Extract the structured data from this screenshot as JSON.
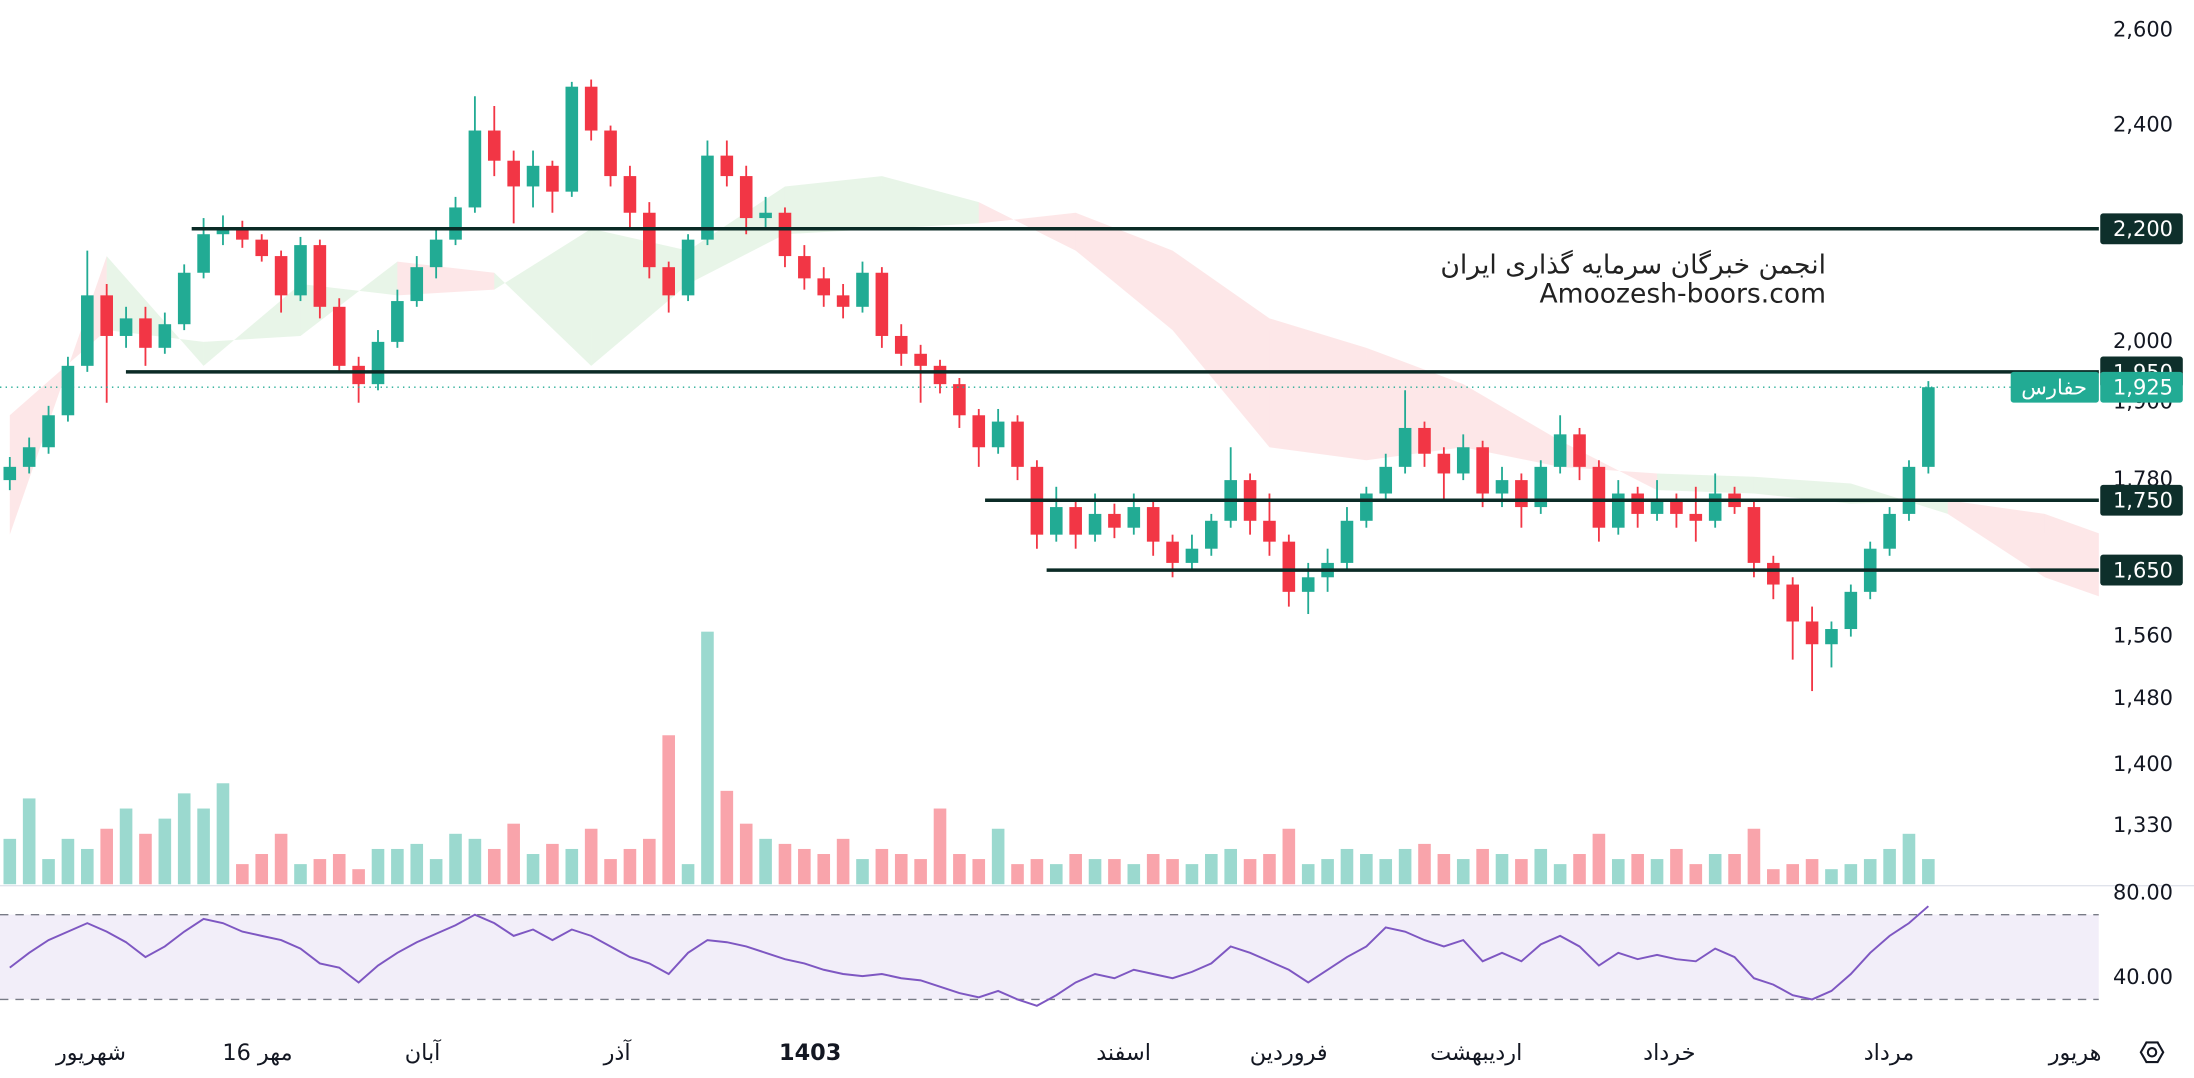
{
  "chart_data": {
    "type": "candlestick",
    "log_scale": true,
    "ylim": [
      1266,
      2668
    ],
    "yticks": [
      {
        "value": 2600,
        "label": "2,600"
      },
      {
        "value": 2400,
        "label": "2,400"
      },
      {
        "value": 2000,
        "label": "2,000"
      },
      {
        "value": 1900,
        "label": "1,900"
      },
      {
        "value": 1780,
        "label": "1,780"
      },
      {
        "value": 1560,
        "label": "1,560"
      },
      {
        "value": 1480,
        "label": "1,480"
      },
      {
        "value": 1400,
        "label": "1,400"
      },
      {
        "value": 1330,
        "label": "1,330"
      }
    ],
    "up_color": "#22ab94",
    "down_color": "#f23645",
    "open": [
      1780,
      1800,
      1830,
      1880,
      1960,
      2080,
      2010,
      2040,
      1990,
      2030,
      2120,
      2190,
      2200,
      2180,
      2150,
      2080,
      2170,
      2060,
      1960,
      1930,
      2000,
      2070,
      2130,
      2180,
      2240,
      2390,
      2330,
      2280,
      2320,
      2270,
      2480,
      2390,
      2300,
      2230,
      2130,
      2080,
      2180,
      2340,
      2300,
      2220,
      2230,
      2150,
      2110,
      2080,
      2060,
      2120,
      2010,
      1980,
      1960,
      1930,
      1880,
      1830,
      1870,
      1800,
      1700,
      1740,
      1700,
      1730,
      1710,
      1740,
      1690,
      1660,
      1680,
      1720,
      1780,
      1720,
      1690,
      1620,
      1640,
      1660,
      1720,
      1760,
      1800,
      1860,
      1820,
      1790,
      1830,
      1760,
      1780,
      1740,
      1800,
      1850,
      1800,
      1710,
      1760,
      1730,
      1750,
      1730,
      1720,
      1760,
      1740,
      1660,
      1630,
      1580,
      1550,
      1570,
      1620,
      1680,
      1730,
      1800
    ],
    "high": [
      1815,
      1845,
      1895,
      1975,
      2160,
      2100,
      2060,
      2060,
      2050,
      2135,
      2220,
      2225,
      2215,
      2190,
      2160,
      2185,
      2180,
      2075,
      1975,
      2020,
      2090,
      2150,
      2200,
      2260,
      2460,
      2440,
      2350,
      2350,
      2330,
      2490,
      2495,
      2400,
      2320,
      2250,
      2140,
      2190,
      2370,
      2370,
      2320,
      2260,
      2240,
      2170,
      2130,
      2100,
      2140,
      2130,
      2030,
      1995,
      1970,
      1940,
      1890,
      1890,
      1880,
      1810,
      1770,
      1750,
      1760,
      1745,
      1760,
      1750,
      1700,
      1700,
      1730,
      1830,
      1790,
      1760,
      1700,
      1660,
      1680,
      1740,
      1770,
      1820,
      1920,
      1870,
      1830,
      1850,
      1840,
      1800,
      1790,
      1810,
      1880,
      1860,
      1810,
      1780,
      1770,
      1780,
      1760,
      1770,
      1790,
      1770,
      1750,
      1670,
      1640,
      1600,
      1580,
      1630,
      1690,
      1740,
      1810,
      1935
    ],
    "low": [
      1765,
      1790,
      1820,
      1870,
      1950,
      1900,
      1990,
      1960,
      1980,
      2020,
      2110,
      2170,
      2165,
      2140,
      2050,
      2070,
      2040,
      1950,
      1900,
      1920,
      1990,
      2060,
      2110,
      2170,
      2230,
      2300,
      2210,
      2240,
      2230,
      2260,
      2370,
      2280,
      2200,
      2110,
      2050,
      2070,
      2170,
      2280,
      2190,
      2200,
      2130,
      2090,
      2060,
      2040,
      2050,
      1990,
      1960,
      1900,
      1915,
      1860,
      1800,
      1820,
      1780,
      1680,
      1690,
      1680,
      1690,
      1695,
      1700,
      1670,
      1640,
      1650,
      1670,
      1710,
      1700,
      1670,
      1600,
      1590,
      1620,
      1650,
      1710,
      1750,
      1790,
      1800,
      1750,
      1780,
      1740,
      1740,
      1710,
      1730,
      1790,
      1780,
      1690,
      1700,
      1710,
      1720,
      1710,
      1690,
      1710,
      1730,
      1640,
      1610,
      1530,
      1490,
      1520,
      1560,
      1610,
      1670,
      1720,
      1790
    ],
    "close": [
      1800,
      1830,
      1880,
      1960,
      2080,
      2010,
      2040,
      1990,
      2030,
      2120,
      2190,
      2200,
      2180,
      2150,
      2080,
      2170,
      2060,
      1960,
      1930,
      2000,
      2070,
      2130,
      2180,
      2240,
      2390,
      2330,
      2280,
      2320,
      2270,
      2480,
      2390,
      2300,
      2230,
      2130,
      2080,
      2180,
      2340,
      2300,
      2220,
      2230,
      2150,
      2110,
      2080,
      2060,
      2120,
      2010,
      1980,
      1960,
      1930,
      1880,
      1830,
      1870,
      1800,
      1700,
      1740,
      1700,
      1730,
      1710,
      1740,
      1690,
      1660,
      1680,
      1720,
      1780,
      1720,
      1690,
      1620,
      1640,
      1660,
      1720,
      1760,
      1800,
      1860,
      1820,
      1790,
      1830,
      1760,
      1780,
      1740,
      1800,
      1850,
      1800,
      1710,
      1760,
      1730,
      1750,
      1730,
      1720,
      1760,
      1740,
      1660,
      1630,
      1580,
      1550,
      1570,
      1620,
      1680,
      1730,
      1800,
      1925
    ],
    "volume_ylim": [
      0,
      350
    ],
    "volume": [
      18,
      34,
      10,
      18,
      14,
      22,
      30,
      20,
      26,
      36,
      30,
      40,
      8,
      12,
      20,
      8,
      10,
      12,
      6,
      14,
      14,
      16,
      10,
      20,
      18,
      14,
      24,
      12,
      16,
      14,
      22,
      10,
      14,
      18,
      59,
      8,
      100,
      37,
      24,
      18,
      16,
      14,
      12,
      18,
      10,
      14,
      12,
      10,
      30,
      12,
      10,
      22,
      8,
      10,
      8,
      12,
      10,
      10,
      8,
      12,
      10,
      8,
      12,
      14,
      10,
      12,
      22,
      8,
      10,
      14,
      12,
      10,
      14,
      16,
      12,
      10,
      14,
      12,
      10,
      14,
      8,
      12,
      20,
      10,
      12,
      10,
      14,
      8,
      12,
      12,
      22,
      6,
      8,
      10,
      6,
      8,
      10,
      14,
      20,
      10
    ],
    "levels": [
      {
        "value": 2200,
        "label": "2,200"
      },
      {
        "value": 1950,
        "label": "1,950"
      },
      {
        "value": 1750,
        "label": "1,750"
      },
      {
        "value": 1650,
        "label": "1,650"
      }
    ],
    "last_price": {
      "value": 1925,
      "label": "1,925",
      "symbol": "حفارس"
    },
    "watermark": [
      "انجمن خبرگان سرمایه گذاری ایران",
      "Amoozesh-boors.com"
    ],
    "ichimoku": {
      "x": [
        0,
        5,
        10,
        15,
        20,
        25,
        30,
        35,
        40,
        45,
        50,
        55,
        60,
        65,
        70,
        75,
        80,
        85,
        90,
        95,
        100,
        105,
        108
      ],
      "span_a": [
        1700,
        2150,
        1960,
        2100,
        2080,
        2090,
        2200,
        2160,
        2280,
        2300,
        2250,
        2160,
        2020,
        1830,
        1810,
        1830,
        1800,
        1790,
        1785,
        1775,
        1730,
        1640,
        1612
      ],
      "span_b": [
        1880,
        2020,
        2000,
        2010,
        2140,
        2120,
        1960,
        2100,
        2190,
        2200,
        2210,
        2230,
        2160,
        2040,
        1990,
        1930,
        1840,
        1765,
        1760,
        1745,
        1750,
        1730,
        1700
      ],
      "up_color": "rgba(76,175,80,0.13)",
      "down_color": "rgba(242,54,69,0.12)"
    },
    "x_labels": [
      "شهریور",
      "16 مهر",
      "آبان",
      "آذر",
      "1403",
      "اسفند",
      "فروردین",
      "اردیبهشت",
      "خرداد",
      "مرداد",
      "هریور"
    ],
    "rsi": {
      "color": "#7e57c2",
      "ylim": [
        13,
        83
      ],
      "yticks": [
        {
          "value": 80,
          "label": "80.00"
        },
        {
          "value": 40,
          "label": "40.00"
        }
      ],
      "bands": [
        70,
        30
      ],
      "values": [
        45,
        52,
        58,
        62,
        66,
        62,
        57,
        50,
        55,
        62,
        68,
        66,
        62,
        60,
        58,
        54,
        47,
        45,
        38,
        46,
        52,
        57,
        61,
        65,
        70,
        66,
        60,
        63,
        58,
        63,
        60,
        55,
        50,
        47,
        42,
        52,
        58,
        57,
        55,
        52,
        49,
        47,
        44,
        42,
        41,
        42,
        40,
        39,
        36,
        33,
        31,
        34,
        30,
        27,
        32,
        38,
        42,
        40,
        44,
        42,
        40,
        43,
        47,
        55,
        52,
        48,
        44,
        38,
        44,
        50,
        55,
        64,
        62,
        58,
        55,
        58,
        48,
        52,
        48,
        56,
        60,
        55,
        46,
        52,
        49,
        51,
        49,
        48,
        54,
        50,
        40,
        37,
        32,
        30,
        34,
        42,
        52,
        60,
        66,
        74
      ]
    }
  }
}
